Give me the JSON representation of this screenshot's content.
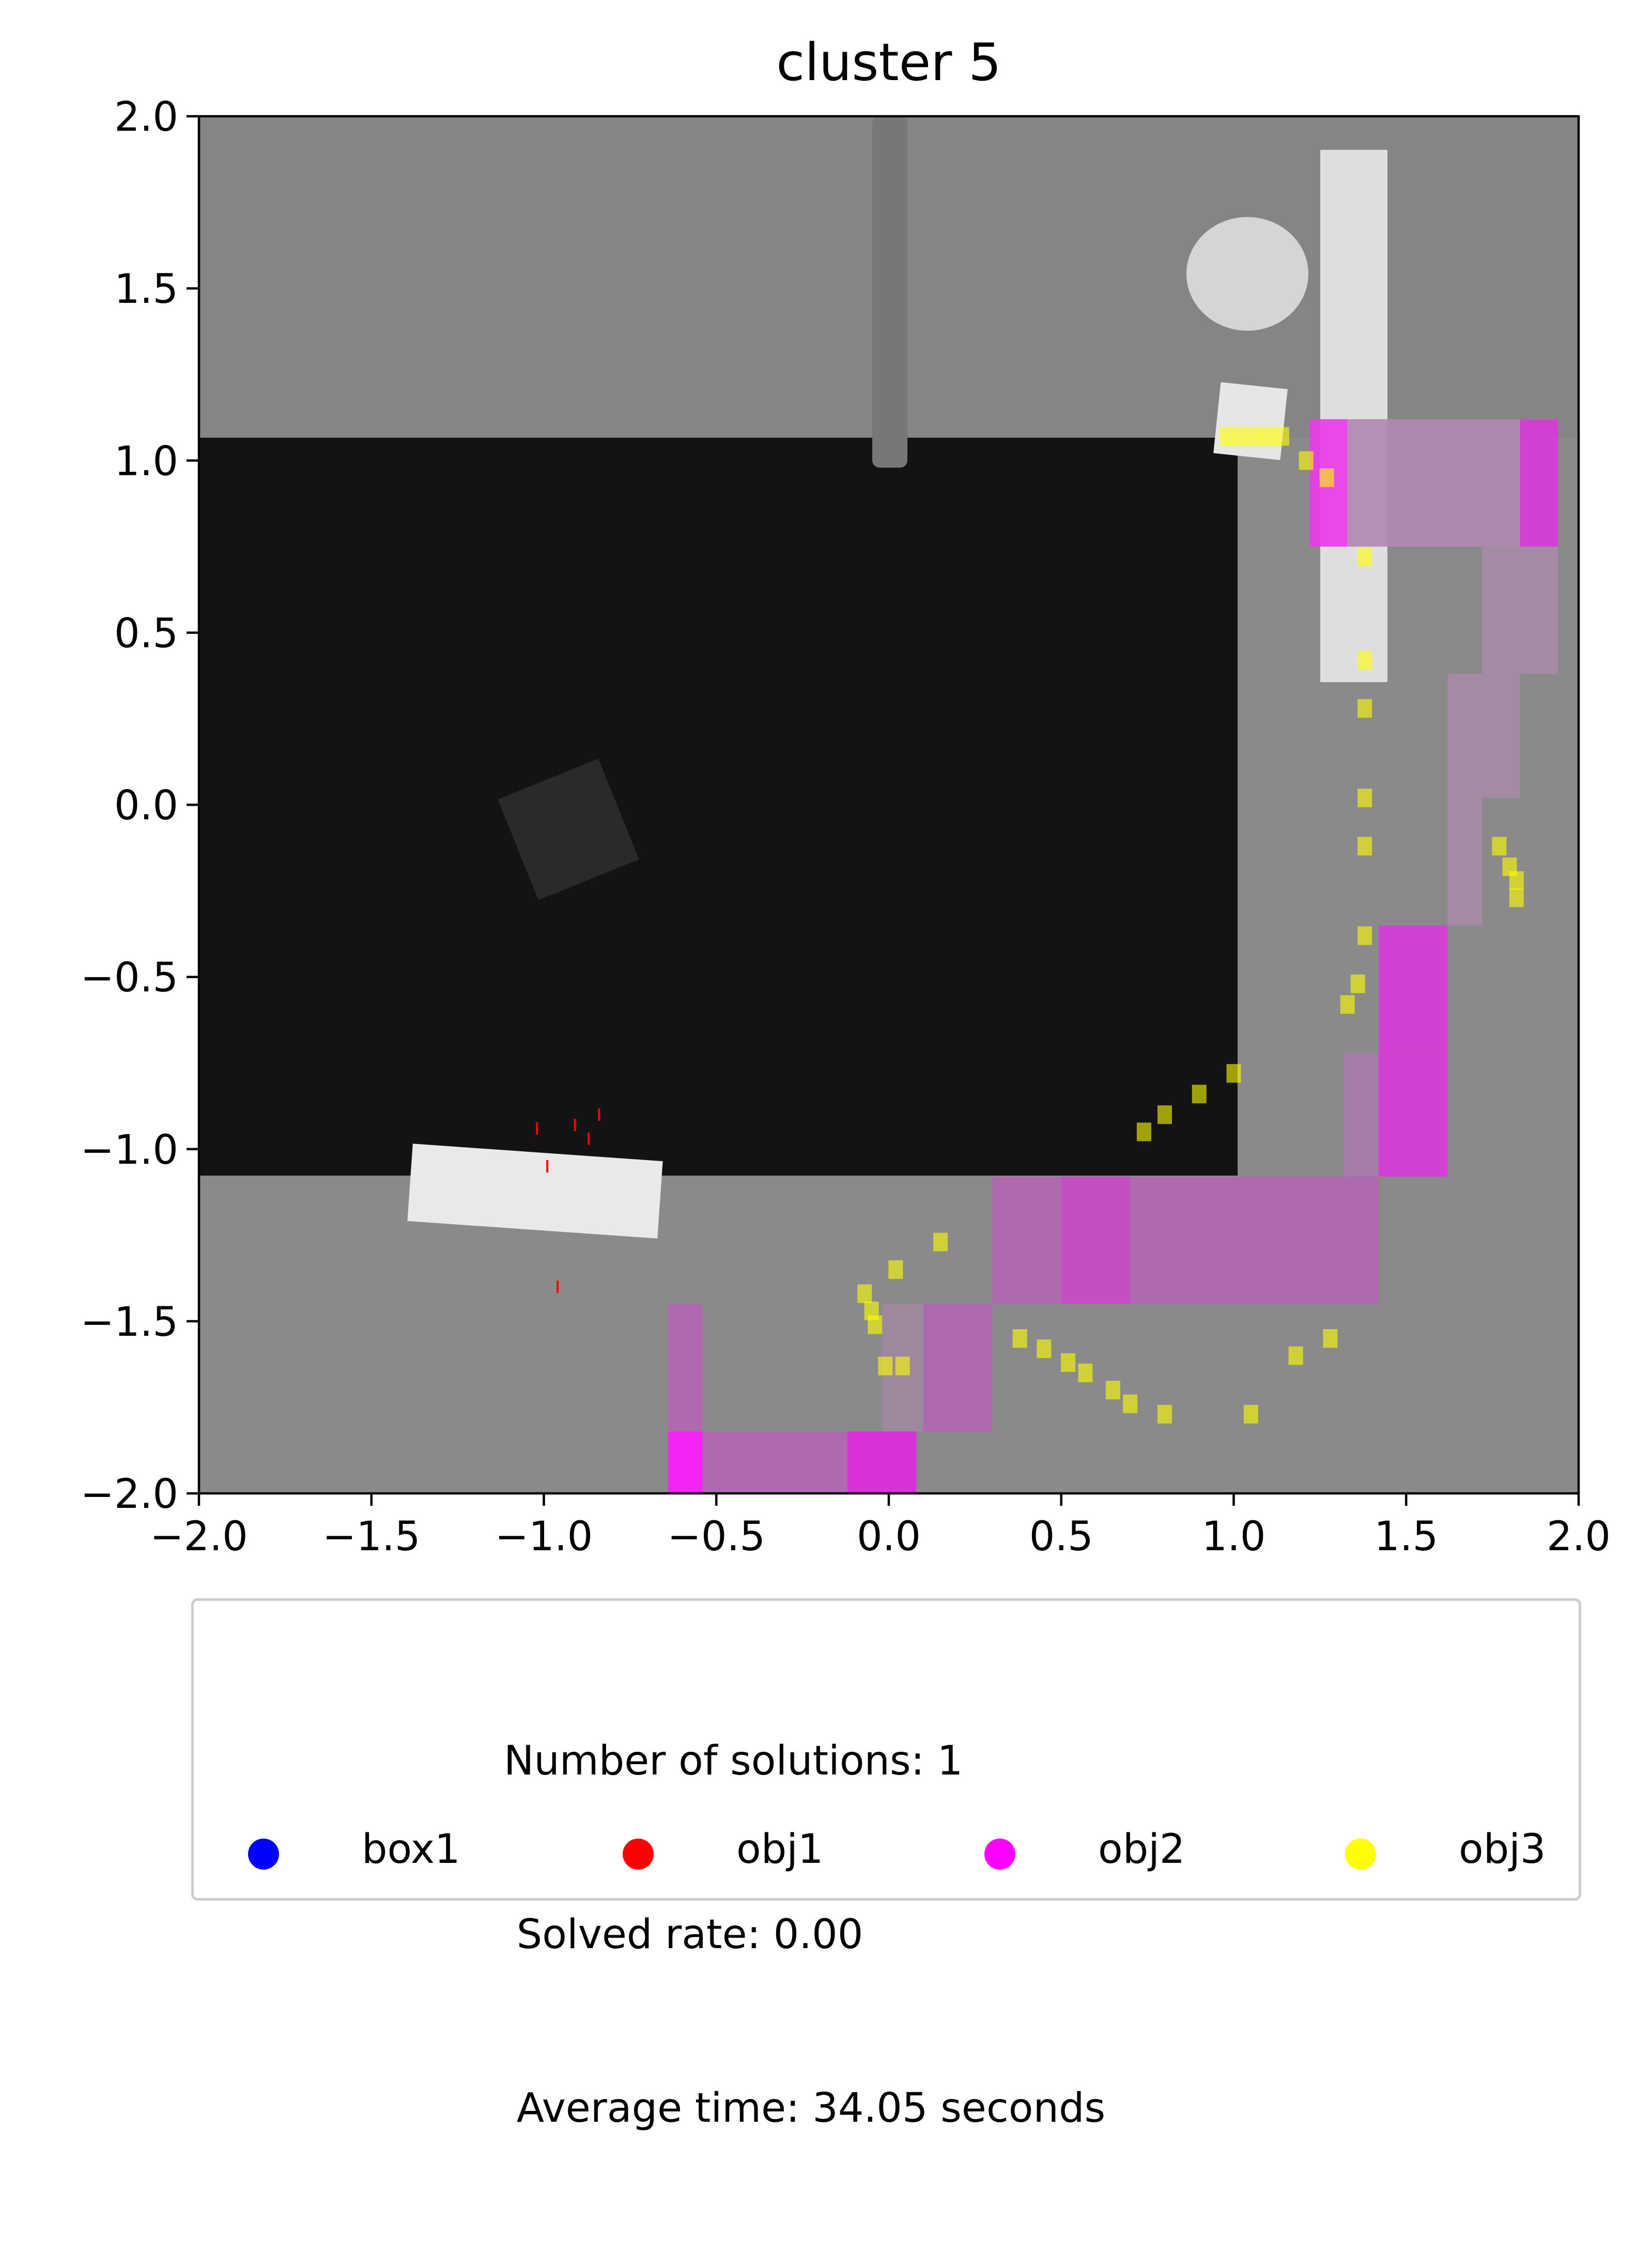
{
  "chart_data": {
    "type": "scatter",
    "title": "cluster 5",
    "xlabel": "",
    "ylabel": "",
    "xlim": [
      -2.0,
      2.0
    ],
    "ylim": [
      -2.0,
      2.0
    ],
    "xticks": [
      "−2.0",
      "−1.5",
      "−1.0",
      "−0.5",
      "0.0",
      "0.5",
      "1.0",
      "1.5",
      "2.0"
    ],
    "yticks": [
      "2.0",
      "1.5",
      "1.0",
      "0.5",
      "0.0",
      "−0.5",
      "−1.0",
      "−1.5",
      "−2.0"
    ],
    "grid": false,
    "legend_placement": "below",
    "legend_text": [
      "Number of solutions: 1",
      " Solved rate: 0.00",
      " Average time: 34.05 seconds"
    ],
    "series": [
      {
        "name": "box1",
        "color": "#0000ff",
        "points": []
      },
      {
        "name": "obj1",
        "color": "#ff0000",
        "points": [
          [
            -1.02,
            -0.94
          ],
          [
            -0.99,
            -1.05
          ],
          [
            -0.91,
            -0.93
          ],
          [
            -0.87,
            -0.97
          ],
          [
            -0.84,
            -0.9
          ],
          [
            -0.96,
            -1.4
          ]
        ]
      },
      {
        "name": "obj2",
        "color": "#ff00ff",
        "cells": [
          [
            1.22,
            0.75,
            1.33,
            1.12,
            "#e83ce8"
          ],
          [
            1.33,
            0.75,
            1.83,
            1.12,
            "#b08ab0"
          ],
          [
            1.83,
            0.75,
            1.94,
            1.12,
            "#d83cd8"
          ],
          [
            1.72,
            0.38,
            1.94,
            0.75,
            "#a68ba6"
          ],
          [
            1.62,
            0.02,
            1.83,
            0.38,
            "#a68ba6"
          ],
          [
            1.62,
            -0.35,
            1.72,
            0.02,
            "#a68ba6"
          ],
          [
            1.42,
            -0.72,
            1.62,
            -0.35,
            "#d83cd8"
          ],
          [
            1.32,
            -1.08,
            1.42,
            -0.72,
            "#aa7baa"
          ],
          [
            1.42,
            -1.08,
            1.62,
            -0.72,
            "#d83cd8"
          ],
          [
            0.3,
            -1.45,
            0.5,
            -1.08,
            "#b266b2"
          ],
          [
            0.5,
            -1.45,
            0.7,
            -1.08,
            "#c84ac8"
          ],
          [
            0.7,
            -1.45,
            1.42,
            -1.08,
            "#b266b2"
          ],
          [
            0.1,
            -1.82,
            0.3,
            -1.45,
            "#b266b2"
          ],
          [
            -0.02,
            -1.82,
            0.1,
            -1.45,
            "#a08aa0"
          ],
          [
            -0.64,
            -1.82,
            -0.54,
            -1.45,
            "#b266b2"
          ],
          [
            -0.64,
            -2.0,
            -0.54,
            -1.82,
            "#ff1aff"
          ],
          [
            -0.54,
            -2.0,
            -0.12,
            -1.82,
            "#b266b2"
          ],
          [
            -0.12,
            -2.0,
            0.08,
            -1.82,
            "#e028e0"
          ]
        ]
      },
      {
        "name": "obj3",
        "color": "#ffff00",
        "points": [
          [
            0.98,
            1.07
          ],
          [
            1.02,
            1.07
          ],
          [
            1.06,
            1.07
          ],
          [
            1.1,
            1.07
          ],
          [
            1.14,
            1.07
          ],
          [
            1.21,
            1.0
          ],
          [
            1.27,
            0.95
          ],
          [
            1.38,
            0.72
          ],
          [
            1.38,
            0.42
          ],
          [
            1.38,
            0.28
          ],
          [
            1.38,
            0.02
          ],
          [
            1.38,
            -0.12
          ],
          [
            1.38,
            -0.38
          ],
          [
            1.36,
            -0.52
          ],
          [
            1.33,
            -0.58
          ],
          [
            1.77,
            -0.12
          ],
          [
            1.8,
            -0.18
          ],
          [
            1.82,
            -0.22
          ],
          [
            1.82,
            -0.27
          ],
          [
            1.0,
            -0.78
          ],
          [
            0.9,
            -0.84
          ],
          [
            0.8,
            -0.9
          ],
          [
            0.74,
            -0.95
          ],
          [
            -0.07,
            -1.42
          ],
          [
            -0.05,
            -1.47
          ],
          [
            -0.04,
            -1.51
          ],
          [
            -0.01,
            -1.63
          ],
          [
            0.04,
            -1.63
          ],
          [
            0.02,
            -1.35
          ],
          [
            0.15,
            -1.27
          ],
          [
            0.38,
            -1.55
          ],
          [
            0.45,
            -1.58
          ],
          [
            0.52,
            -1.62
          ],
          [
            0.57,
            -1.65
          ],
          [
            0.65,
            -1.7
          ],
          [
            0.7,
            -1.74
          ],
          [
            0.8,
            -1.77
          ],
          [
            1.05,
            -1.77
          ],
          [
            1.18,
            -1.6
          ],
          [
            1.28,
            -1.55
          ]
        ]
      }
    ]
  }
}
